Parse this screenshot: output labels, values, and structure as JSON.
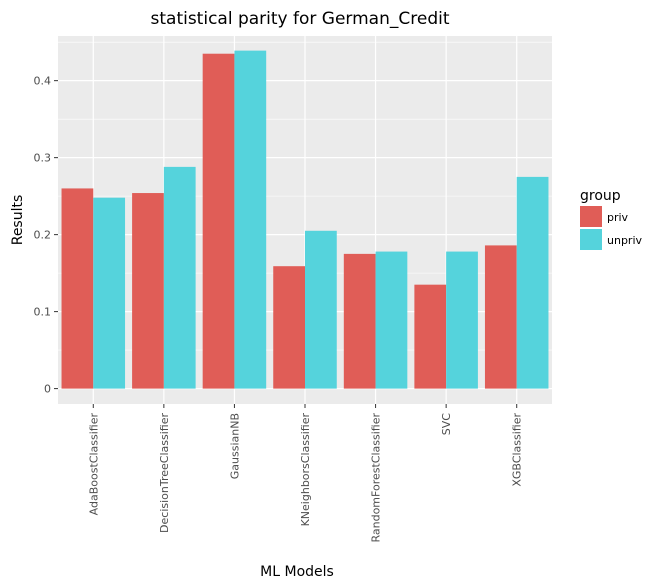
{
  "chart_data": {
    "type": "bar",
    "title": "statistical parity for German_Credit",
    "xlabel": "ML Models",
    "ylabel": "Results",
    "categories": [
      "AdaBoostClassifier",
      "DecisionTreeClassifier",
      "GaussianNB",
      "KNeighborsClassifier",
      "RandomForestClassifier",
      "SVC",
      "XGBClassifier"
    ],
    "series": [
      {
        "name": "priv",
        "color": "#E05D57",
        "values": [
          0.26,
          0.254,
          0.435,
          0.159,
          0.175,
          0.135,
          0.186
        ]
      },
      {
        "name": "unpriv",
        "color": "#55D3DC",
        "values": [
          0.248,
          0.288,
          0.439,
          0.205,
          0.178,
          0.178,
          0.275
        ]
      }
    ],
    "ylim": [
      -0.02,
      0.458
    ],
    "yticks": [
      0,
      0.1,
      0.2,
      0.3,
      0.4
    ],
    "ytick_labels": [
      "0",
      "0.1",
      "0.2",
      "0.3",
      "0.4"
    ],
    "grid": true,
    "panel_color": "#EBEBEB",
    "legend": {
      "title": "group",
      "position": "right"
    }
  }
}
